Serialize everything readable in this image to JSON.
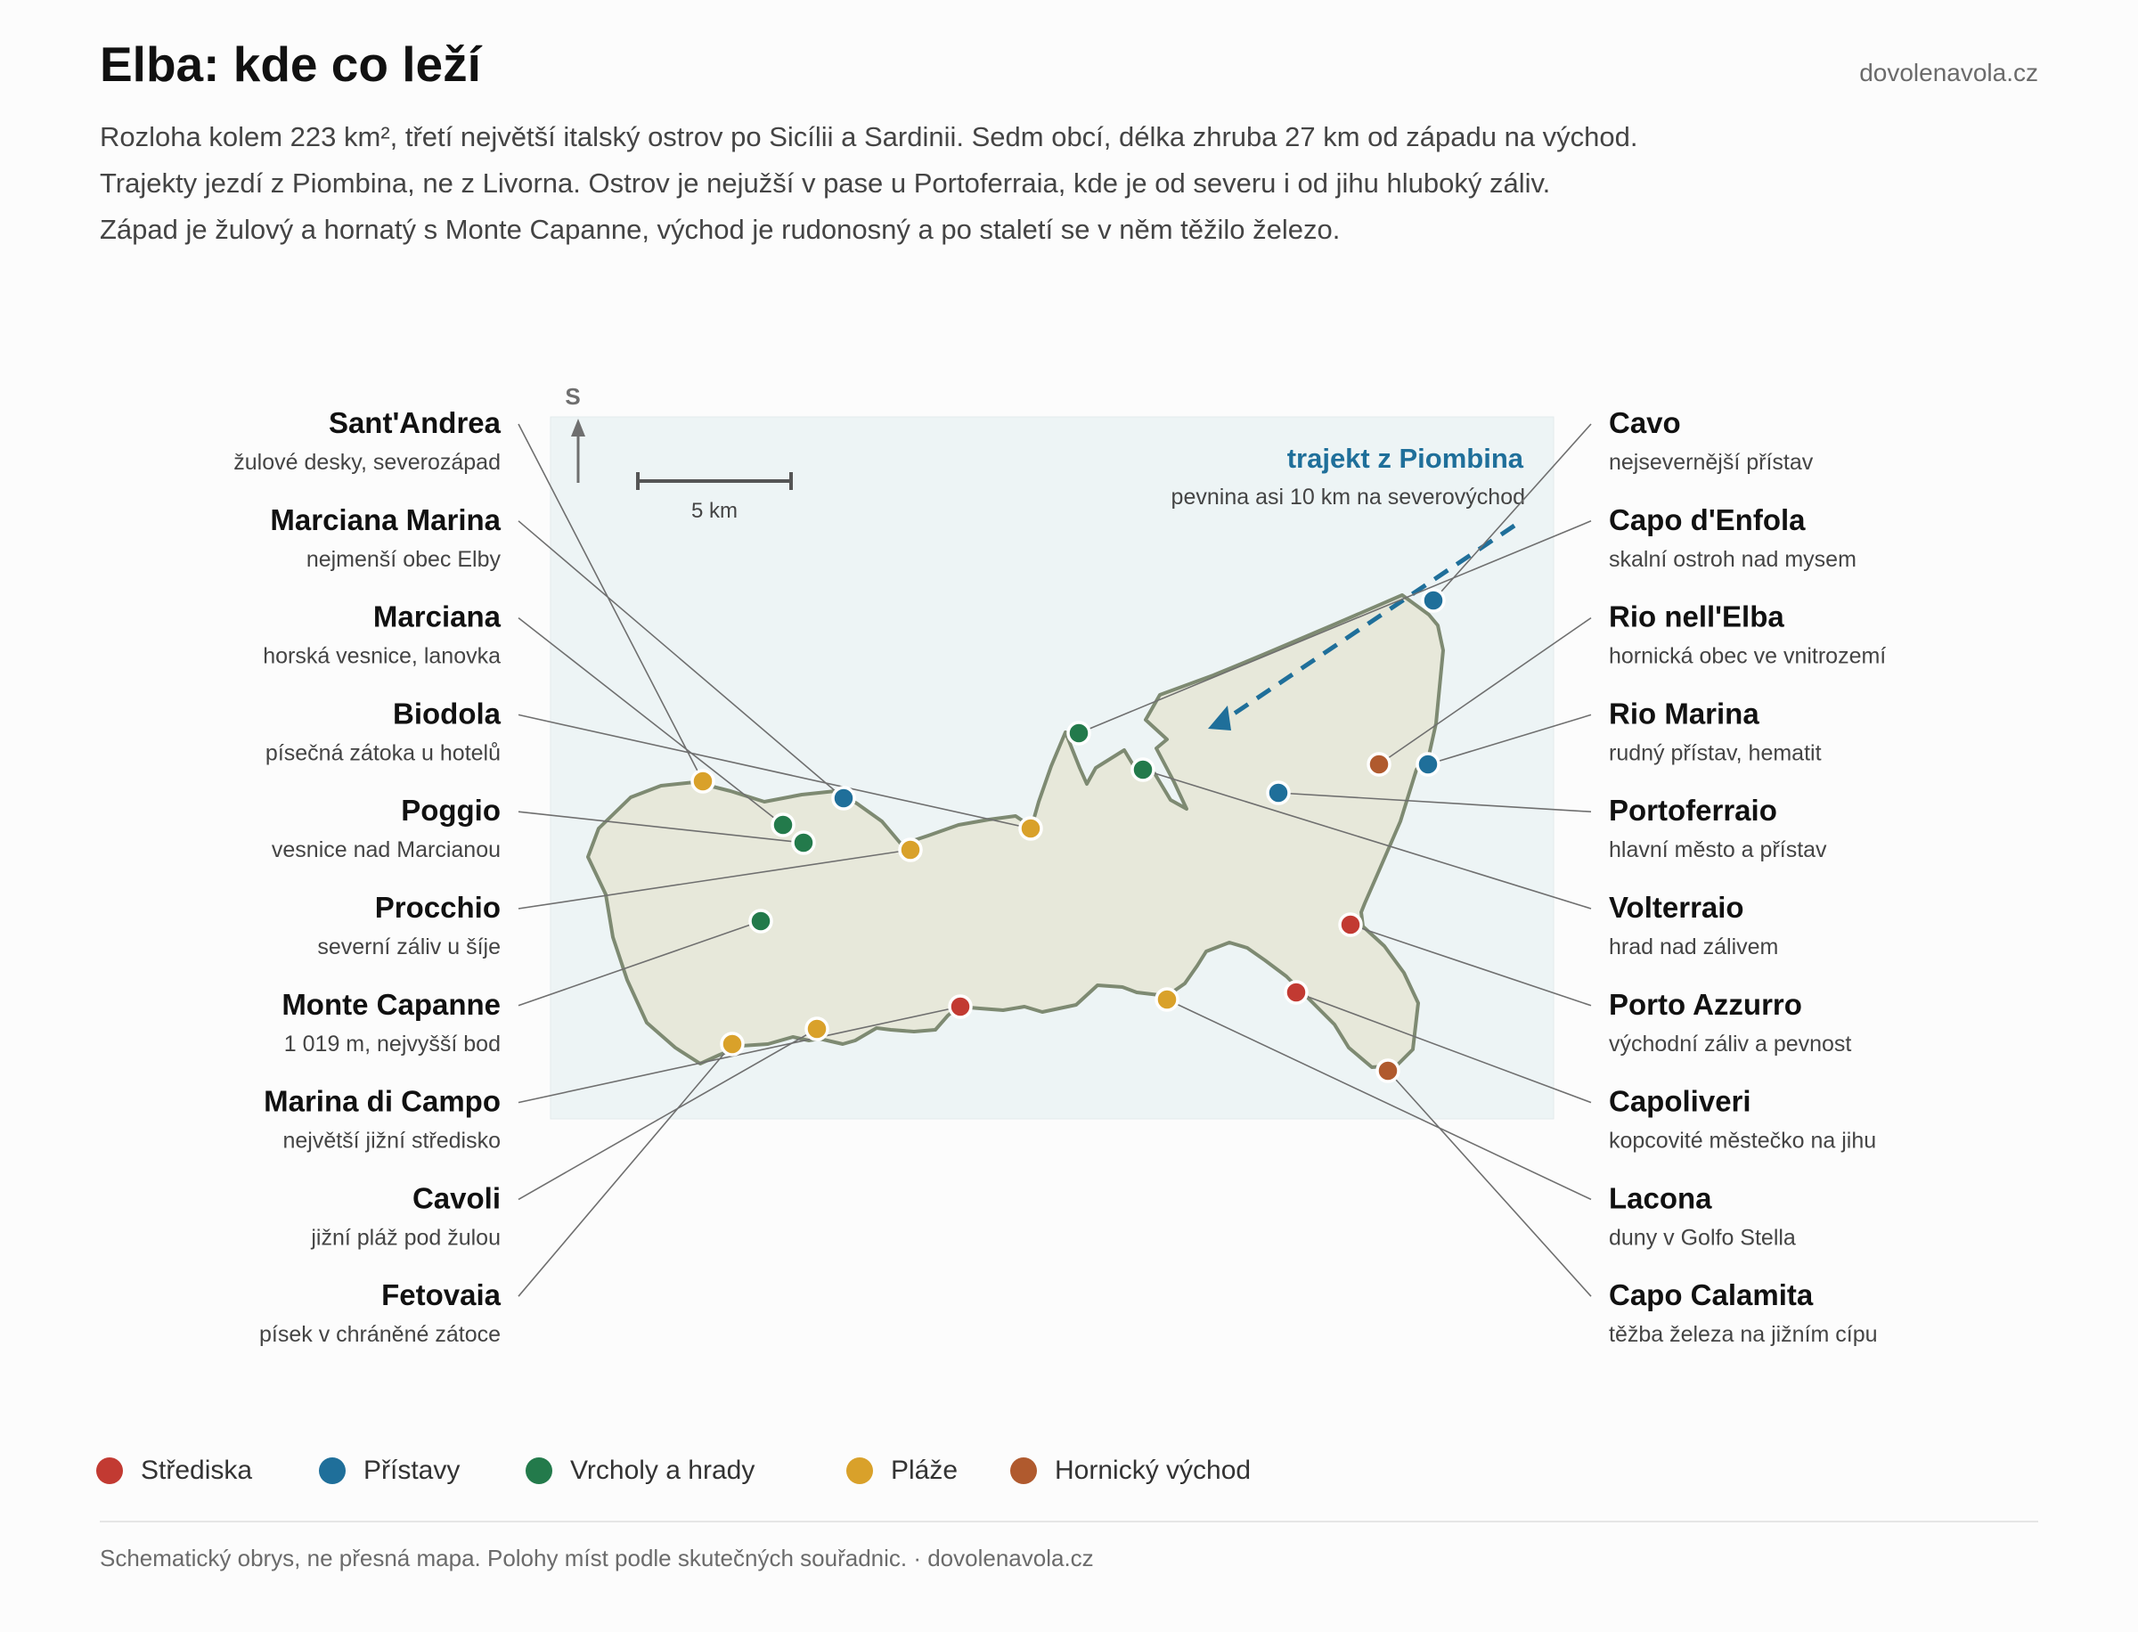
{
  "header": {
    "title": "Elba: kde co leží",
    "site": "dovolenavola.cz",
    "intro": [
      "Rozloha kolem 223 km², třetí největší italský ostrov po Sicílii a Sardinii. Sedm obcí, délka zhruba 27 km od západu na východ.",
      "Trajekty jezdí z Piombina, ne z Livorna. Ostrov je nejužší v pase u Portoferraia, kde je od severu i od jihu hluboký záliv.",
      "Západ je žulový a hornatý s Monte Capanne, východ je rudonosný a po staletí se v něm těžilo železo."
    ]
  },
  "map": {
    "north_label": "S",
    "scale_label": "5 km",
    "ferry": {
      "title": "trajekt z Piombina",
      "subtitle": "pevnina asi 10 km na severovýchod",
      "color": "#1f6f9a"
    },
    "colors": {
      "sea": "#edf4f5",
      "land": "#e7e8da",
      "coast": "#7e8a72",
      "leader": "#6f6f6f"
    }
  },
  "categories": {
    "stred": {
      "label": "Střediska",
      "color": "#c23a32"
    },
    "pristav": {
      "label": "Přístavy",
      "color": "#1f6f9a"
    },
    "vrchol": {
      "label": "Vrcholy a hrady",
      "color": "#237a4b"
    },
    "plaz": {
      "label": "Pláže",
      "color": "#d9a12a"
    },
    "horn": {
      "label": "Hornický východ",
      "color": "#b05a2e"
    }
  },
  "legend": [
    "stred",
    "pristav",
    "vrchol",
    "plaz",
    "horn"
  ],
  "places_left": [
    {
      "name": "Sant'Andrea",
      "desc": "žulové desky, severozápad",
      "category": "plaz"
    },
    {
      "name": "Marciana Marina",
      "desc": "nejmenší obec Elby",
      "category": "pristav"
    },
    {
      "name": "Marciana",
      "desc": "horská vesnice, lanovka",
      "category": "vrchol"
    },
    {
      "name": "Biodola",
      "desc": "písečná zátoka u hotelů",
      "category": "plaz"
    },
    {
      "name": "Poggio",
      "desc": "vesnice nad Marcianou",
      "category": "vrchol"
    },
    {
      "name": "Procchio",
      "desc": "severní záliv u šíje",
      "category": "plaz"
    },
    {
      "name": "Monte Capanne",
      "desc": "1 019 m, nejvyšší bod",
      "category": "vrchol"
    },
    {
      "name": "Marina di Campo",
      "desc": "největší jižní středisko",
      "category": "stred"
    },
    {
      "name": "Cavoli",
      "desc": "jižní pláž pod žulou",
      "category": "plaz"
    },
    {
      "name": "Fetovaia",
      "desc": "písek v chráněné zátoce",
      "category": "plaz"
    }
  ],
  "places_right": [
    {
      "name": "Cavo",
      "desc": "nejsevernější přístav",
      "category": "pristav"
    },
    {
      "name": "Capo d'Enfola",
      "desc": "skalní ostroh nad mysem",
      "category": "vrchol"
    },
    {
      "name": "Rio nell'Elba",
      "desc": "hornická obec ve vnitrozemí",
      "category": "horn"
    },
    {
      "name": "Rio Marina",
      "desc": "rudný přístav, hematit",
      "category": "pristav"
    },
    {
      "name": "Portoferraio",
      "desc": "hlavní město a přístav",
      "category": "pristav"
    },
    {
      "name": "Volterraio",
      "desc": "hrad nad zálivem",
      "category": "vrchol"
    },
    {
      "name": "Porto Azzurro",
      "desc": "východní záliv a pevnost",
      "category": "stred"
    },
    {
      "name": "Capoliveri",
      "desc": "kopcovité městečko na jihu",
      "category": "stred"
    },
    {
      "name": "Lacona",
      "desc": "duny v Golfo Stella",
      "category": "plaz"
    },
    {
      "name": "Capo Calamita",
      "desc": "těžba železa na jižním cípu",
      "category": "horn"
    }
  ],
  "footer": "Schematický obrys, ne přesná mapa. Polohy míst podle skutečných souřadnic. · dovolenavola.cz"
}
